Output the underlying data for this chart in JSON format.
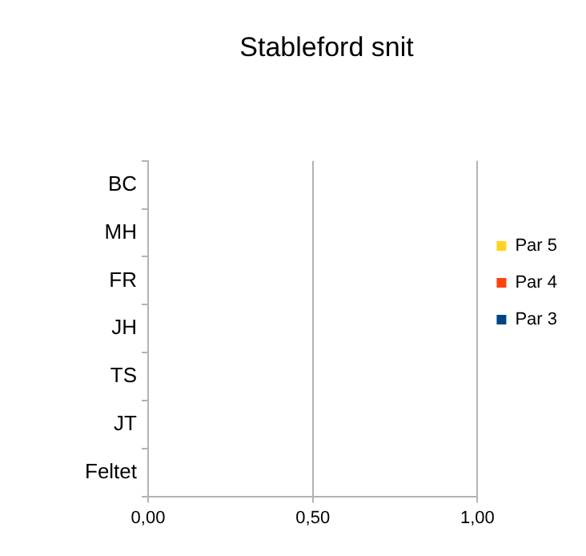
{
  "chart_data": {
    "type": "bar",
    "orientation": "horizontal",
    "title": "Stableford snit",
    "categories": [
      "BC",
      "MH",
      "FR",
      "JH",
      "TS",
      "JT",
      "Feltet"
    ],
    "series": [
      {
        "name": "Par 5",
        "color": "#ffd320",
        "values": [
          0,
          0,
          0,
          0,
          0,
          0,
          0
        ]
      },
      {
        "name": "Par 4",
        "color": "#ff420e",
        "values": [
          0,
          0,
          0,
          0,
          0,
          0,
          0
        ]
      },
      {
        "name": "Par 3",
        "color": "#004586",
        "values": [
          0,
          0,
          0,
          0,
          0,
          0,
          0
        ]
      }
    ],
    "xlim": [
      0,
      1
    ],
    "xticks": [
      {
        "value": 0,
        "label": "0,00"
      },
      {
        "value": 0.5,
        "label": "0,50"
      },
      {
        "value": 1,
        "label": "1,00"
      }
    ],
    "grid": "x",
    "legend": "right"
  }
}
